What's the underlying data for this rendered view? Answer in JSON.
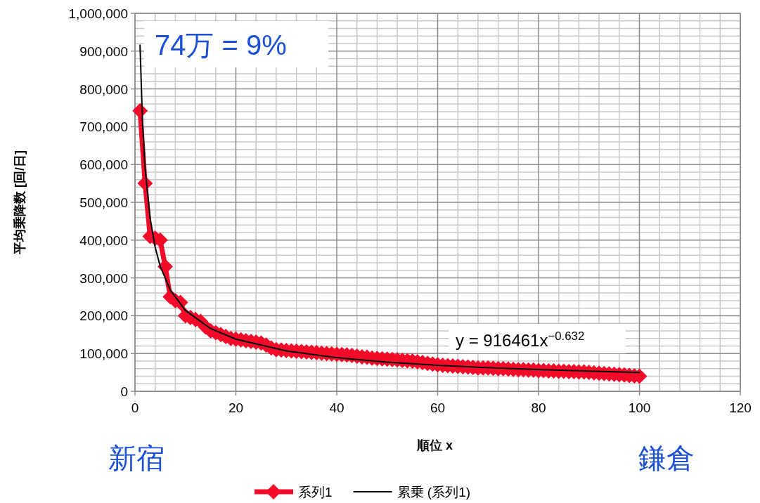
{
  "chart_data": {
    "type": "line",
    "xlabel": "順位 x",
    "ylabel": "平均乗降数 [回/日]",
    "annotations": [
      "74万 = 9%",
      "y = 916461x$^{−0.632}$",
      "新宿",
      "鎌倉"
    ],
    "xlim": [
      0,
      120
    ],
    "xticks": [
      0,
      20,
      40,
      60,
      80,
      100,
      120
    ],
    "ylim": [
      0,
      1000000
    ],
    "yticks": [
      {
        "value": 0,
        "label": "0"
      },
      {
        "value": 100000,
        "label": "100,000"
      },
      {
        "value": 200000,
        "label": "200,000"
      },
      {
        "value": 300000,
        "label": "300,000"
      },
      {
        "value": 400000,
        "label": "400,000"
      },
      {
        "value": 500000,
        "label": "500,000"
      },
      {
        "value": 600000,
        "label": "600,000"
      },
      {
        "value": 700000,
        "label": "700,000"
      },
      {
        "value": 800000,
        "label": "800,000"
      },
      {
        "value": 900000,
        "label": "900,000"
      },
      {
        "value": 1000000,
        "label": "1,000,000"
      }
    ],
    "grid": true,
    "legend": "bottom",
    "series": [
      {
        "name": "系列1",
        "color": "#f20c2a",
        "marker": "diamond",
        "x": [
          1,
          2,
          3,
          4,
          5,
          6,
          7,
          8,
          9,
          10,
          11,
          12,
          13,
          14,
          15,
          16,
          17,
          18,
          19,
          20,
          21,
          22,
          23,
          24,
          25,
          26,
          27,
          28,
          29,
          30,
          31,
          32,
          33,
          34,
          35,
          36,
          37,
          38,
          39,
          40,
          41,
          42,
          43,
          44,
          45,
          46,
          47,
          48,
          49,
          50,
          51,
          52,
          53,
          54,
          55,
          56,
          57,
          58,
          59,
          60,
          61,
          62,
          63,
          64,
          65,
          66,
          67,
          68,
          69,
          70,
          71,
          72,
          73,
          74,
          75,
          76,
          77,
          78,
          79,
          80,
          81,
          82,
          83,
          84,
          85,
          86,
          87,
          88,
          89,
          90,
          91,
          92,
          93,
          94,
          95,
          96,
          97,
          98,
          99,
          100
        ],
        "values": [
          742000,
          550000,
          410000,
          405000,
          400000,
          330000,
          250000,
          240000,
          235000,
          200000,
          195000,
          190000,
          185000,
          170000,
          160000,
          155000,
          150000,
          145000,
          140000,
          138000,
          136000,
          134000,
          132000,
          130000,
          128000,
          122000,
          115000,
          110000,
          109000,
          108000,
          107000,
          106000,
          105000,
          104000,
          103000,
          102000,
          101000,
          100000,
          99000,
          98000,
          97000,
          96000,
          95000,
          93000,
          91000,
          90000,
          88000,
          87000,
          86000,
          85000,
          84000,
          83000,
          82000,
          81000,
          80000,
          78000,
          76000,
          74000,
          72000,
          70000,
          69000,
          68000,
          67000,
          66000,
          65000,
          64000,
          63000,
          62000,
          62000,
          62000,
          61000,
          60000,
          60000,
          59000,
          58000,
          57000,
          57000,
          56000,
          56000,
          55000,
          55000,
          54000,
          54000,
          53000,
          53000,
          52000,
          52000,
          51000,
          51000,
          50000,
          49000,
          48000,
          47000,
          46000,
          45000,
          44000,
          43000,
          42000,
          41000,
          40000
        ]
      },
      {
        "name": "累乗 (系列1)",
        "color": "#000000",
        "marker": "none",
        "x": [
          1,
          1.5,
          2,
          3,
          4,
          5,
          7,
          10,
          15,
          20,
          30,
          40,
          50,
          60,
          70,
          80,
          90,
          100
        ],
        "values": [
          916000,
          709000,
          591000,
          458000,
          381000,
          331000,
          268000,
          214000,
          166000,
          138000,
          107000,
          89000,
          77000,
          69000,
          62500,
          57500,
          53300,
          49900
        ]
      }
    ]
  }
}
